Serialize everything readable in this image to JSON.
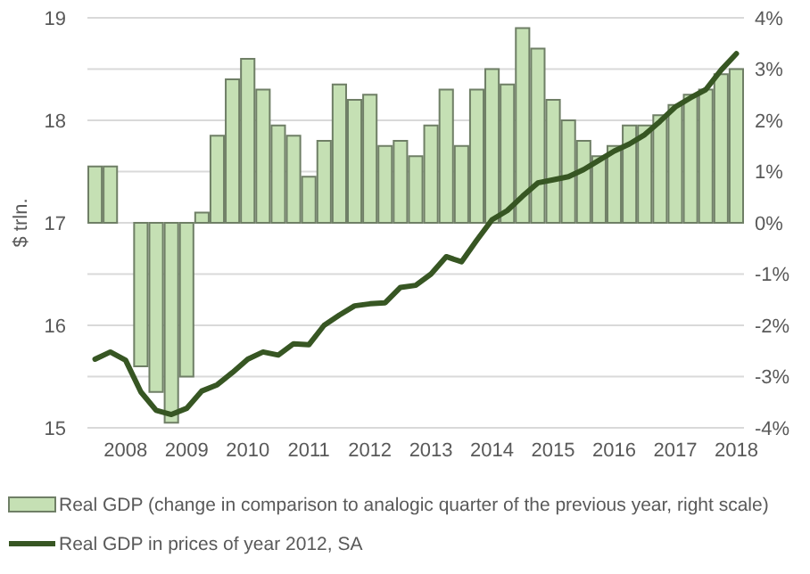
{
  "chart_data": {
    "type": "bar",
    "ylabel": "$ trln.",
    "categories": [
      null,
      null,
      "2008",
      null,
      null,
      null,
      "2009",
      null,
      null,
      null,
      "2010",
      null,
      null,
      null,
      "2011",
      null,
      null,
      null,
      "2012",
      null,
      null,
      null,
      "2013",
      null,
      null,
      null,
      "2014",
      null,
      null,
      null,
      "2015",
      null,
      null,
      null,
      "2016",
      null,
      null,
      null,
      "2017",
      null,
      null,
      null,
      "2018"
    ],
    "series": [
      {
        "name": "Real GDP (change in comparison to analogic quarter of the previous year, right scale)",
        "axis": "y2",
        "color": "#c5e0b4",
        "values": [
          1.1,
          1.1,
          0,
          -2.8,
          -3.3,
          -3.9,
          -3.0,
          0.2,
          1.7,
          2.8,
          3.2,
          2.6,
          1.9,
          1.7,
          0.9,
          1.6,
          2.7,
          2.4,
          2.5,
          1.5,
          1.6,
          1.3,
          1.9,
          2.6,
          1.5,
          2.6,
          3.0,
          2.7,
          3.8,
          3.4,
          2.4,
          2.0,
          1.6,
          1.3,
          1.5,
          1.9,
          1.9,
          2.1,
          2.3,
          2.5,
          2.6,
          2.9,
          3.0
        ]
      },
      {
        "name": "Real GDP in prices of year 2012, SA",
        "type": "line",
        "color": "#375623",
        "values": [
          15.67,
          15.74,
          15.66,
          15.35,
          15.17,
          15.13,
          15.19,
          15.36,
          15.42,
          15.54,
          15.67,
          15.74,
          15.71,
          15.82,
          15.81,
          16.0,
          16.1,
          16.19,
          16.21,
          16.22,
          16.37,
          16.39,
          16.5,
          16.67,
          16.62,
          16.83,
          17.03,
          17.12,
          17.26,
          17.39,
          17.42,
          17.45,
          17.52,
          17.61,
          17.7,
          17.77,
          17.86,
          17.99,
          18.13,
          18.22,
          18.3,
          18.49,
          18.65
        ]
      }
    ],
    "ylim": [
      15,
      19
    ],
    "yticks": [
      15,
      16,
      17,
      18,
      19
    ],
    "y2lim": [
      -4,
      4
    ],
    "y2ticks": [
      {
        "value": -4,
        "label": "-4%"
      },
      {
        "value": -3,
        "label": "-3%"
      },
      {
        "value": -2,
        "label": "-2%"
      },
      {
        "value": -1,
        "label": "-1%"
      },
      {
        "value": 0,
        "label": "0%"
      },
      {
        "value": 1,
        "label": "1%"
      },
      {
        "value": 2,
        "label": "2%"
      },
      {
        "value": 3,
        "label": "3%"
      },
      {
        "value": 4,
        "label": "4%"
      }
    ],
    "grid": true,
    "legend": "bottom"
  }
}
